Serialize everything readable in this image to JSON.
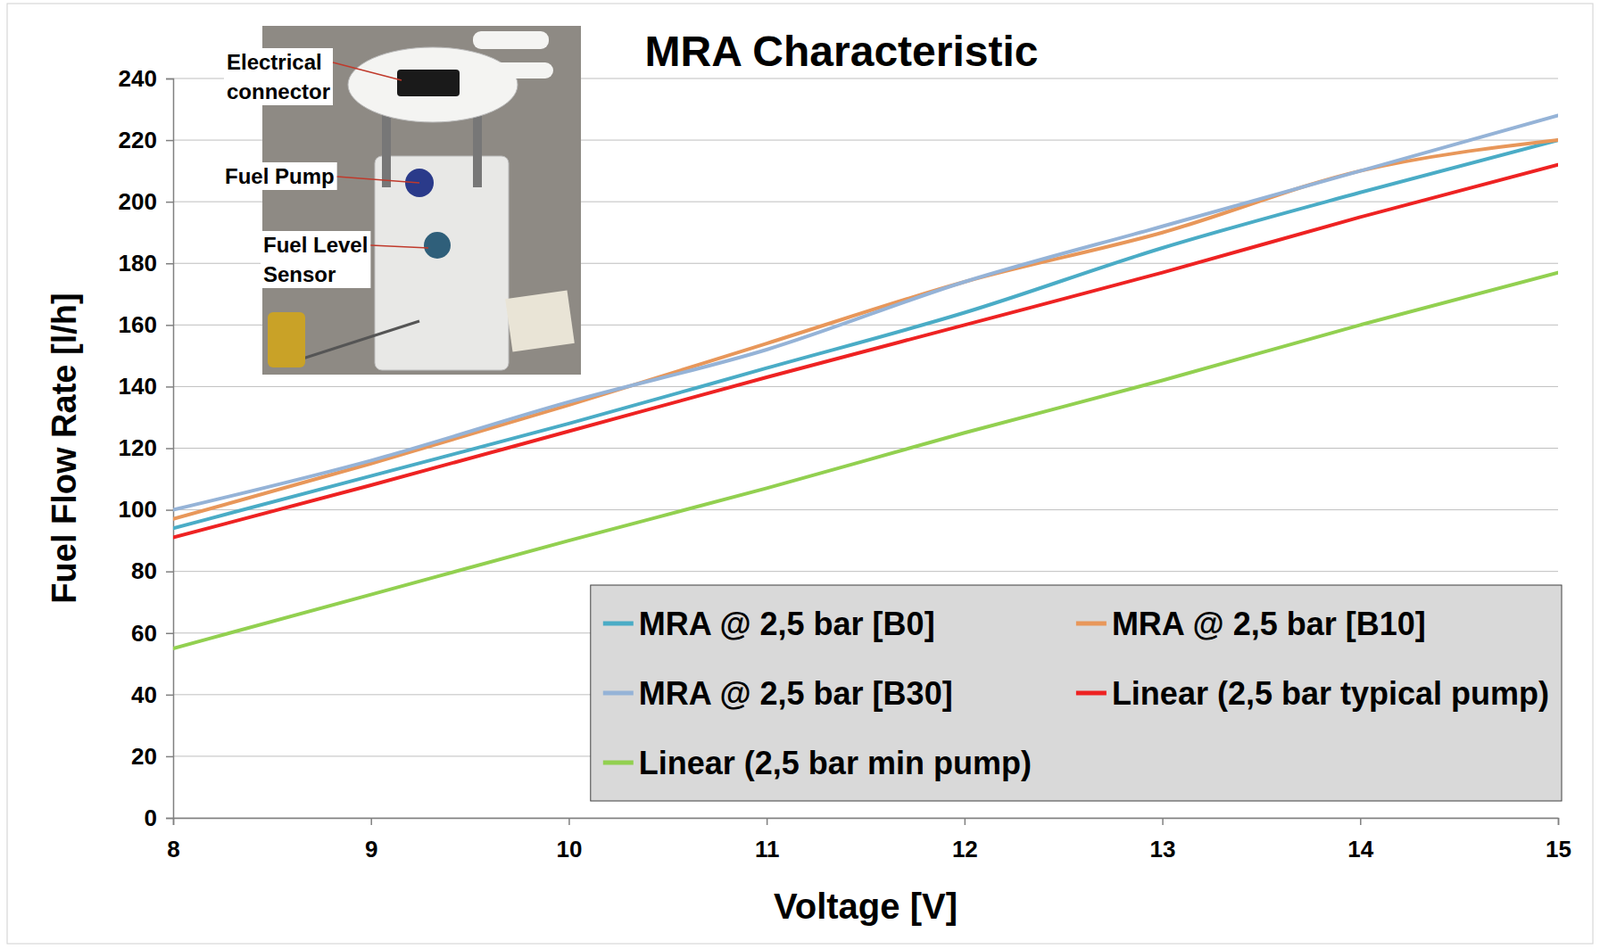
{
  "chart_data": {
    "type": "line",
    "title": "MRA Characteristic",
    "x_label": "Voltage [V]",
    "y_label": "Fuel Flow Rate [l/h]",
    "annotations": [
      "Electrical connector",
      "Fuel Pump",
      "Fuel Level Sensor"
    ],
    "x": [
      8,
      9,
      10,
      11,
      12,
      13,
      14,
      15
    ],
    "series": [
      {
        "name": "MRA @ 2,5 bar [B0]",
        "color": "#4aacc6",
        "values": [
          94,
          111,
          128,
          146,
          164,
          185,
          203,
          220
        ]
      },
      {
        "name": "MRA @ 2,5 bar [B10]",
        "color": "#e8975a",
        "values": [
          97,
          115,
          134,
          154,
          174,
          190,
          210,
          220
        ]
      },
      {
        "name": "MRA @ 2,5 bar [B30]",
        "color": "#95b3d7",
        "values": [
          100,
          116,
          135,
          152,
          174,
          192,
          210,
          228
        ]
      },
      {
        "name": "Linear (2,5 bar typical pump)",
        "color": "#ee2222",
        "values": [
          91,
          108,
          125.5,
          143,
          160,
          177,
          195,
          212
        ]
      },
      {
        "name": "Linear (2,5 bar min pump)",
        "color": "#92d050",
        "values": [
          55,
          72.5,
          90,
          107,
          125,
          142,
          160,
          177
        ]
      }
    ],
    "xlim": [
      8,
      15
    ],
    "xticks": [
      8,
      9,
      10,
      11,
      12,
      13,
      14,
      15
    ],
    "ylim": [
      0,
      240
    ],
    "yticks": [
      0,
      20,
      40,
      60,
      80,
      100,
      120,
      140,
      160,
      180,
      200,
      220,
      240
    ],
    "grid": true,
    "legend": "bottom-right"
  }
}
